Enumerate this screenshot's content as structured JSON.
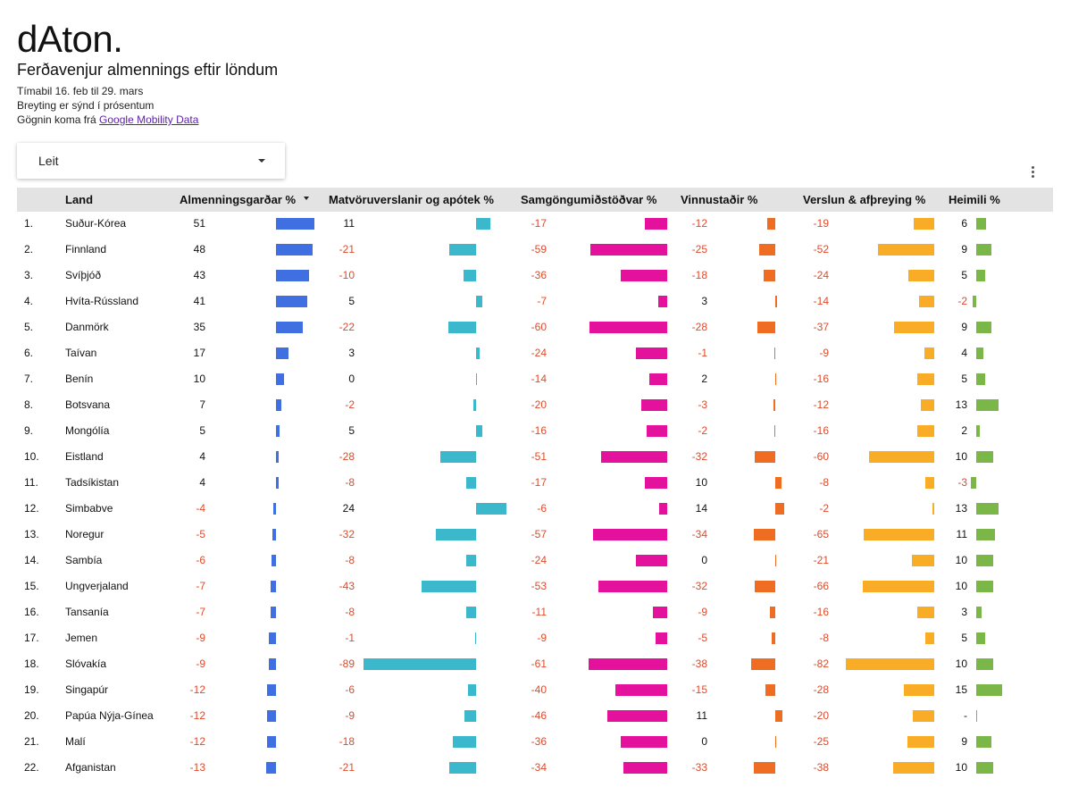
{
  "brand": "dAton.",
  "title": "Ferðavenjur almennings eftir löndum",
  "subtitle_lines": [
    "Tímabil 16. feb til 29. mars",
    "Breyting er sýnd í prósentum"
  ],
  "source_prefix": "Gögnin koma frá ",
  "source_link": "Google Mobility  Data",
  "search": {
    "label": "Leit"
  },
  "columns": {
    "land": "Land",
    "parks": "Almenningsgarðar %",
    "grocery": "Matvöruverslanir og apótek %",
    "transit": "Samgöngumiðstöðvar %",
    "work": "Vinnustaðir %",
    "retail": "Verslun & afþreying %",
    "home": "Heimili %"
  },
  "colors": {
    "parks": "#3f6fe0",
    "grocery": "#3bb8cb",
    "transit": "#e3119b",
    "work": "#ee6d22",
    "retail": "#f9ad27",
    "home": "#7ab648",
    "negative_text": "#dd4b2c"
  },
  "rows": [
    {
      "rank": "1.",
      "country": "Suður-Kórea",
      "parks": 51,
      "grocery": 11,
      "transit": -17,
      "work": -12,
      "retail": -19,
      "home": 6
    },
    {
      "rank": "2.",
      "country": "Finnland",
      "parks": 48,
      "grocery": -21,
      "transit": -59,
      "work": -25,
      "retail": -52,
      "home": 9
    },
    {
      "rank": "3.",
      "country": "Svíþjóð",
      "parks": 43,
      "grocery": -10,
      "transit": -36,
      "work": -18,
      "retail": -24,
      "home": 5
    },
    {
      "rank": "4.",
      "country": "Hvíta-Rússland",
      "parks": 41,
      "grocery": 5,
      "transit": -7,
      "work": 3,
      "retail": -14,
      "home": -2
    },
    {
      "rank": "5.",
      "country": "Danmörk",
      "parks": 35,
      "grocery": -22,
      "transit": -60,
      "work": -28,
      "retail": -37,
      "home": 9
    },
    {
      "rank": "6.",
      "country": "Taívan",
      "parks": 17,
      "grocery": 3,
      "transit": -24,
      "work": -1,
      "retail": -9,
      "home": 4
    },
    {
      "rank": "7.",
      "country": "Benín",
      "parks": 10,
      "grocery": 0,
      "transit": -14,
      "work": 2,
      "retail": -16,
      "home": 5
    },
    {
      "rank": "8.",
      "country": "Botsvana",
      "parks": 7,
      "grocery": -2,
      "transit": -20,
      "work": -3,
      "retail": -12,
      "home": 13
    },
    {
      "rank": "9.",
      "country": "Mongólía",
      "parks": 5,
      "grocery": 5,
      "transit": -16,
      "work": -2,
      "retail": -16,
      "home": 2
    },
    {
      "rank": "10.",
      "country": "Eistland",
      "parks": 4,
      "grocery": -28,
      "transit": -51,
      "work": -32,
      "retail": -60,
      "home": 10
    },
    {
      "rank": "11.",
      "country": "Tadsíkistan",
      "parks": 4,
      "grocery": -8,
      "transit": -17,
      "work": 10,
      "retail": -8,
      "home": -3
    },
    {
      "rank": "12.",
      "country": "Simbabve",
      "parks": -4,
      "grocery": 24,
      "transit": -6,
      "work": 14,
      "retail": -2,
      "home": 13
    },
    {
      "rank": "13.",
      "country": "Noregur",
      "parks": -5,
      "grocery": -32,
      "transit": -57,
      "work": -34,
      "retail": -65,
      "home": 11
    },
    {
      "rank": "14.",
      "country": "Sambía",
      "parks": -6,
      "grocery": -8,
      "transit": -24,
      "work": 0,
      "retail": -21,
      "home": 10
    },
    {
      "rank": "15.",
      "country": "Ungverjaland",
      "parks": -7,
      "grocery": -43,
      "transit": -53,
      "work": -32,
      "retail": -66,
      "home": 10
    },
    {
      "rank": "16.",
      "country": "Tansanía",
      "parks": -7,
      "grocery": -8,
      "transit": -11,
      "work": -9,
      "retail": -16,
      "home": 3
    },
    {
      "rank": "17.",
      "country": "Jemen",
      "parks": -9,
      "grocery": -1,
      "transit": -9,
      "work": -5,
      "retail": -8,
      "home": 5
    },
    {
      "rank": "18.",
      "country": "Slóvakía",
      "parks": -9,
      "grocery": -89,
      "transit": -61,
      "work": -38,
      "retail": -82,
      "home": 10
    },
    {
      "rank": "19.",
      "country": "Singapúr",
      "parks": -12,
      "grocery": -6,
      "transit": -40,
      "work": -15,
      "retail": -28,
      "home": 15
    },
    {
      "rank": "20.",
      "country": "Papúa Nýja-Gínea",
      "parks": -12,
      "grocery": -9,
      "transit": -46,
      "work": 11,
      "retail": -20,
      "home": "-"
    },
    {
      "rank": "21.",
      "country": "Malí",
      "parks": -12,
      "grocery": -18,
      "transit": -36,
      "work": 0,
      "retail": -25,
      "home": 9
    },
    {
      "rank": "22.",
      "country": "Afganistan",
      "parks": -13,
      "grocery": -21,
      "transit": -34,
      "work": -33,
      "retail": -38,
      "home": 10
    }
  ]
}
